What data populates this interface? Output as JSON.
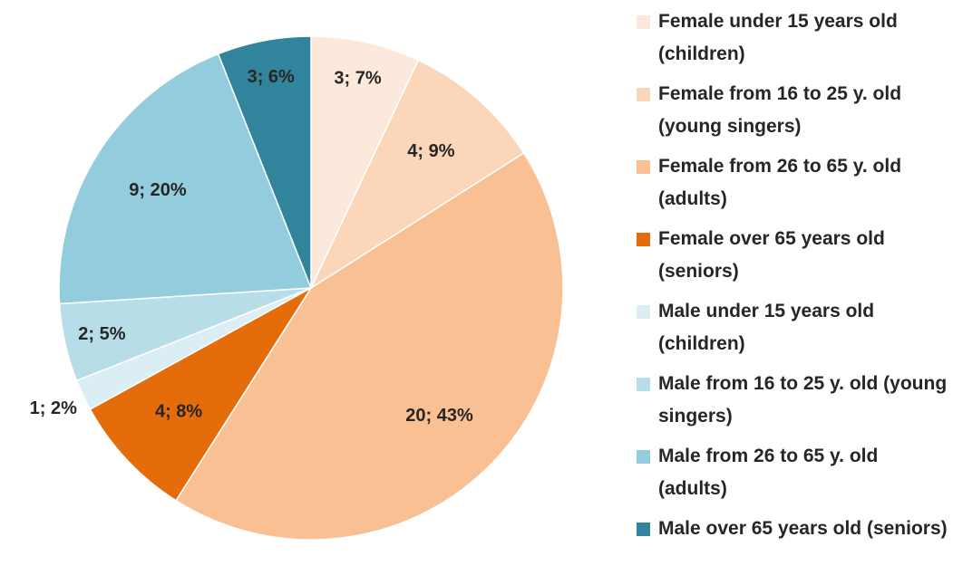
{
  "chart_data": {
    "type": "pie",
    "categories": [
      "Female under 15 years old (children)",
      "Female from 16 to 25 y. old (young singers)",
      "Female from 26 to 65 y. old (adults)",
      "Female over 65 years old (seniors)",
      "Male under 15 years old (children)",
      "Male from 16 to 25 y. old (young singers)",
      "Male from 26 to 65 y. old (adults)",
      "Male over 65 years old (seniors)"
    ],
    "values": [
      7,
      9,
      43,
      8,
      2,
      5,
      20,
      6
    ],
    "value_labels": [
      "3; 7%",
      "4; 9%",
      "20; 43%",
      "4; 8%",
      "1; 2%",
      "2; 5%",
      "9; 20%",
      "3; 6%"
    ],
    "colors": [
      "#fde9dc",
      "#fbd6b8",
      "#f9c093",
      "#e46c0a",
      "#dbeef4",
      "#b7dee8",
      "#93cddd",
      "#31849b"
    ],
    "legend": "right"
  }
}
